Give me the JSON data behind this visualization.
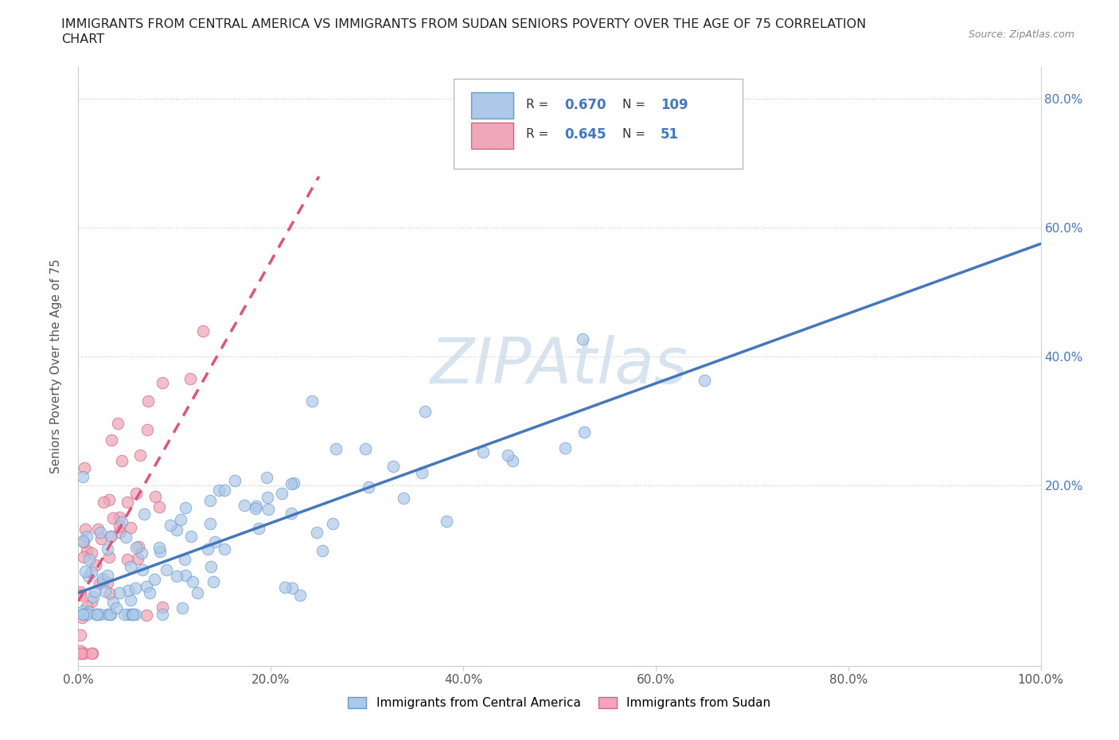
{
  "title_line1": "IMMIGRANTS FROM CENTRAL AMERICA VS IMMIGRANTS FROM SUDAN SENIORS POVERTY OVER THE AGE OF 75 CORRELATION",
  "title_line2": "CHART",
  "source": "Source: ZipAtlas.com",
  "ylabel": "Seniors Poverty Over the Age of 75",
  "R_central": 0.67,
  "N_central": 109,
  "R_sudan": 0.645,
  "N_sudan": 51,
  "scatter_color_central": "#adc8e8",
  "scatter_edge_central": "#6699cc",
  "scatter_color_sudan": "#f0a8b8",
  "scatter_edge_sudan": "#cc6688",
  "line_color_central": "#4477bb",
  "line_color_sudan": "#dd5577",
  "watermark_color": "#c8d8ea",
  "legend_label_central": "Immigrants from Central America",
  "legend_label_sudan": "Immigrants from Sudan"
}
